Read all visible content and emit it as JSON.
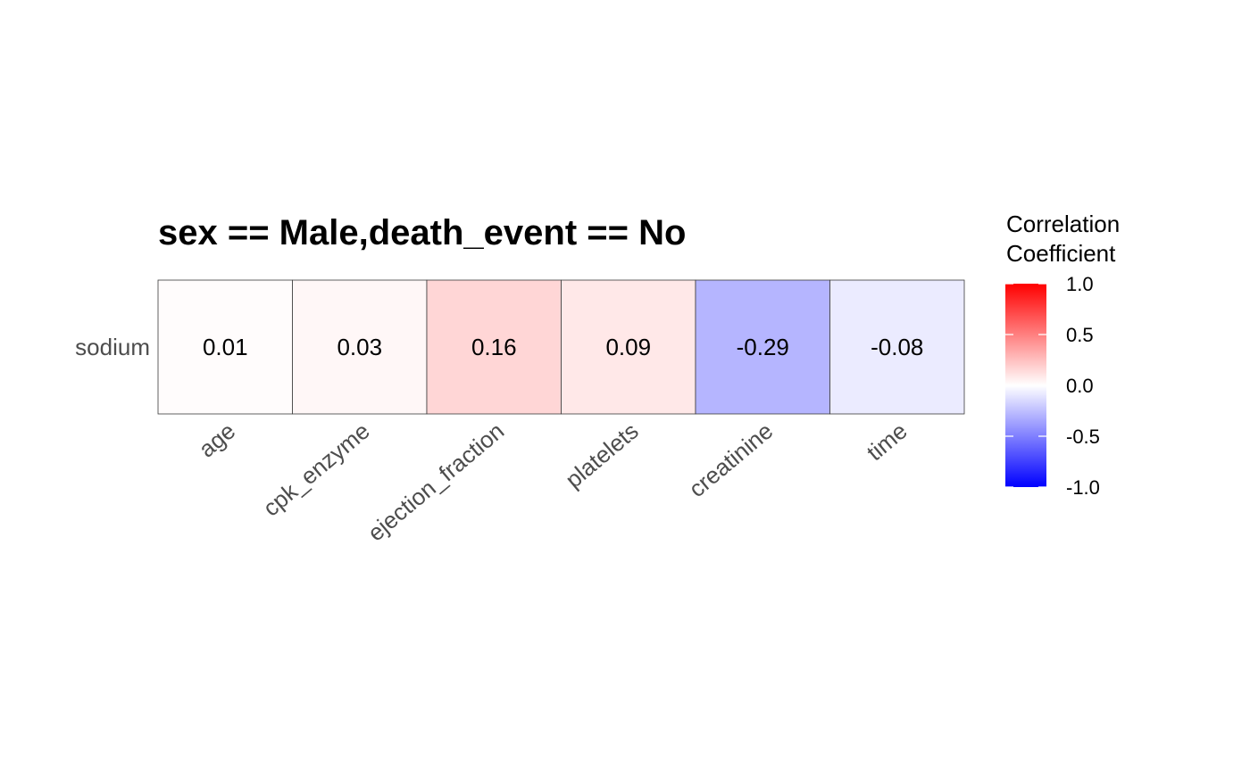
{
  "chart_data": {
    "type": "heatmap",
    "title": "sex == Male,death_event == No",
    "rows": [
      "sodium"
    ],
    "columns": [
      "age",
      "cpk_enzyme",
      "ejection_fraction",
      "platelets",
      "creatinine",
      "time"
    ],
    "values": [
      [
        0.01,
        0.03,
        0.16,
        0.09,
        -0.29,
        -0.08
      ]
    ],
    "value_labels": [
      [
        "0.01",
        "0.03",
        "0.16",
        "0.09",
        "-0.29",
        "-0.08"
      ]
    ],
    "legend": {
      "title_lines": [
        "Correlation",
        "Coefficient"
      ],
      "min": -1.0,
      "max": 1.0,
      "ticks": [
        1.0,
        0.5,
        0.0,
        -0.5,
        -1.0
      ],
      "tick_labels": [
        "1.0",
        "0.5",
        "0.0",
        "-0.5",
        "-1.0"
      ],
      "placement": "right"
    },
    "colors": {
      "low": "#0000ff",
      "mid": "#ffffff",
      "high": "#ff0000"
    },
    "grid": false
  }
}
